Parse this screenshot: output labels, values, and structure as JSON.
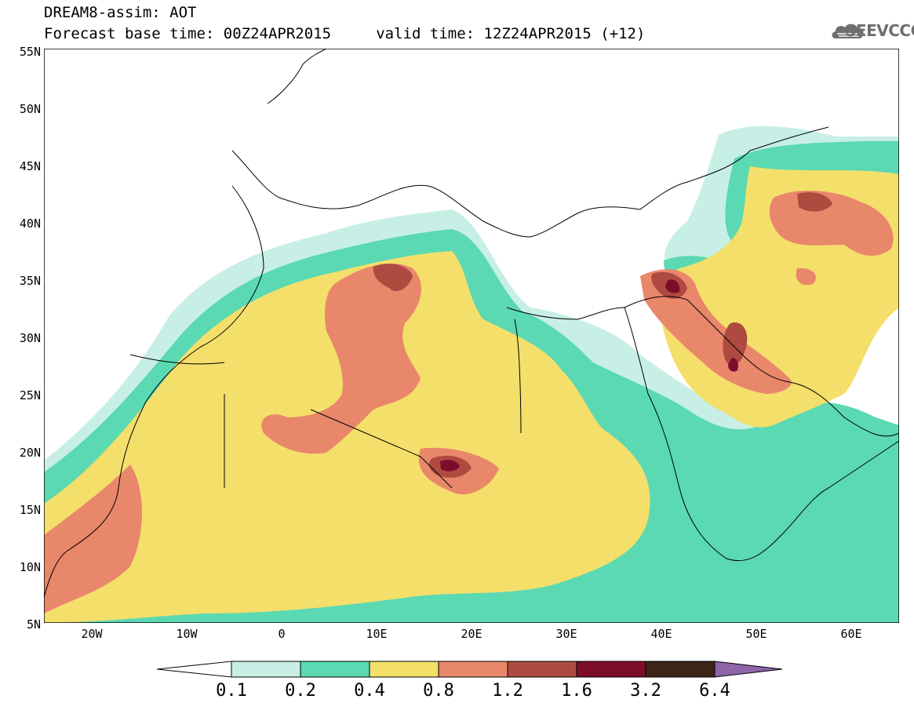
{
  "header": {
    "title": "DREAM8-assim: AOT",
    "subtitle": "Forecast base time: 00Z24APR2015     valid time: 12Z24APR2015 (+12)"
  },
  "logo": {
    "text": "SEEVCCC",
    "icon": "cloud-icon"
  },
  "map": {
    "variable": "AOT",
    "region": "North Africa, Europe, Middle East",
    "lon_range": [
      -25,
      65
    ],
    "lat_range": [
      5,
      55
    ],
    "lat_labels": [
      "55N",
      "50N",
      "45N",
      "40N",
      "35N",
      "30N",
      "25N",
      "20N",
      "15N",
      "10N",
      "5N"
    ],
    "lon_labels": [
      "20W",
      "10W",
      "0",
      "10E",
      "20E",
      "30E",
      "40E",
      "50E",
      "60E"
    ]
  },
  "colorbar": {
    "labels": [
      "0.1",
      "0.2",
      "0.4",
      "0.8",
      "1.2",
      "1.6",
      "3.2",
      "6.4"
    ],
    "colors": [
      "#ffffff",
      "#c7efe6",
      "#5ad9b3",
      "#f4df6b",
      "#e9876a",
      "#ae4a40",
      "#7c0d2a",
      "#3d2417",
      "#8f64a8"
    ],
    "orientation": "horizontal",
    "extend": "both"
  }
}
